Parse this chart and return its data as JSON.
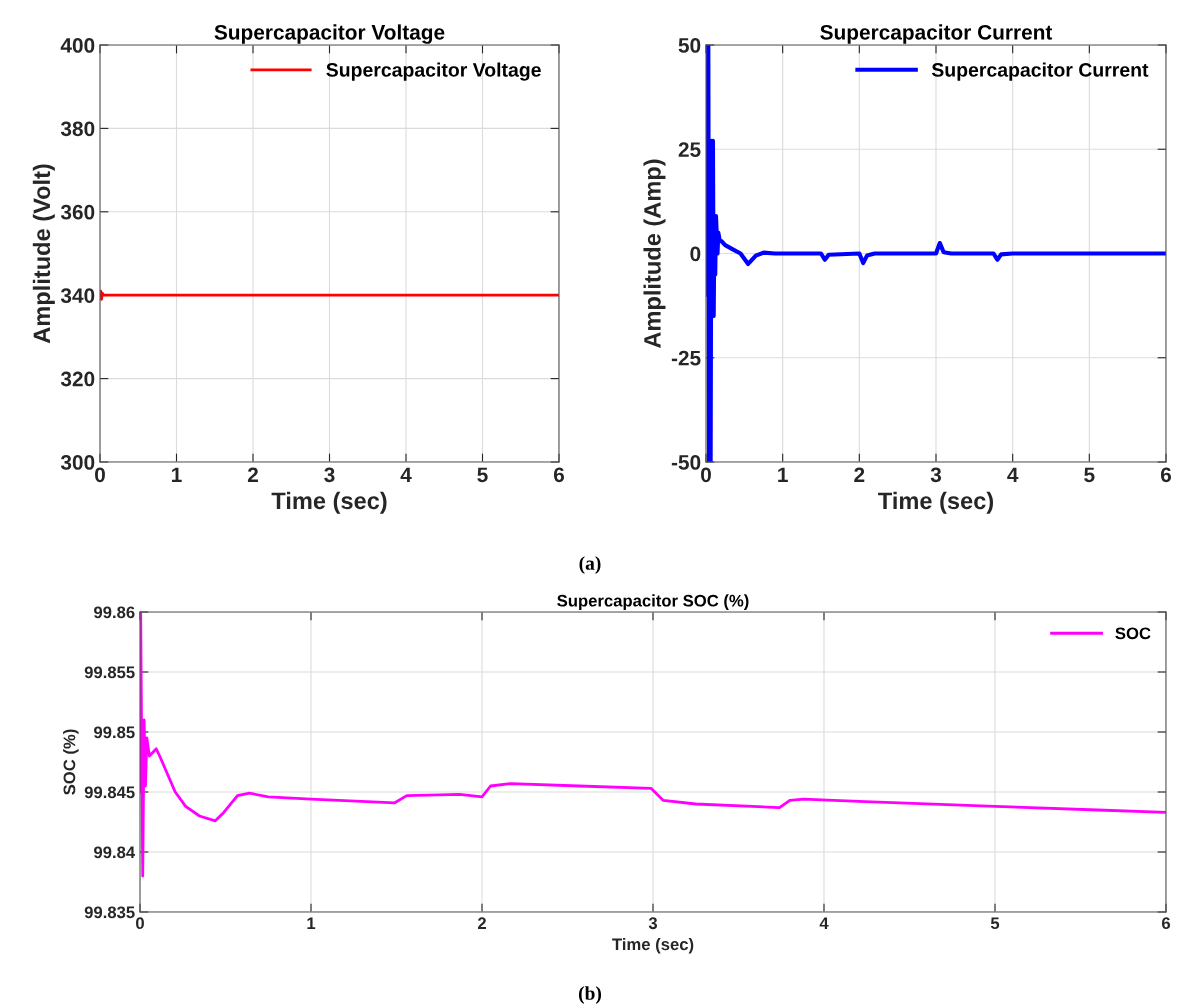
{
  "chart_data": [
    {
      "type": "line",
      "title": "Supercapacitor Voltage",
      "xlabel": "Time (sec)",
      "ylabel": "Amplitude (Volt)",
      "xlim": [
        0,
        6
      ],
      "xticks": [
        0,
        1,
        2,
        3,
        4,
        5,
        6
      ],
      "ylim": [
        300,
        400
      ],
      "yticks": [
        300,
        320,
        340,
        360,
        380,
        400
      ],
      "grid": true,
      "legend": "top right",
      "annotations": [
        "(a)"
      ],
      "series": [
        {
          "name": "Supercapacitor Voltage",
          "color": "#ff0000",
          "x": [
            0,
            0.01,
            0.02,
            0.03,
            0.05,
            1,
            2,
            3,
            4,
            5,
            6
          ],
          "values": [
            340,
            341,
            339,
            340.5,
            340,
            340,
            340,
            340,
            340,
            340,
            340
          ]
        }
      ]
    },
    {
      "type": "line",
      "title": "Supercapacitor Current",
      "xlabel": "Time (sec)",
      "ylabel": "Amplitude (Amp)",
      "xlim": [
        0,
        6
      ],
      "xticks": [
        0,
        1,
        2,
        3,
        4,
        5,
        6
      ],
      "ylim": [
        -50,
        50
      ],
      "yticks": [
        -50,
        -25,
        0,
        25,
        50
      ],
      "grid": true,
      "legend": "top right",
      "series": [
        {
          "name": "Supercapacitor Current",
          "color": "#0000ff",
          "x": [
            0,
            0.01,
            0.02,
            0.03,
            0.04,
            0.05,
            0.06,
            0.07,
            0.08,
            0.09,
            0.1,
            0.11,
            0.12,
            0.13,
            0.15,
            0.16,
            0.18,
            0.2,
            0.25,
            0.35,
            0.45,
            0.55,
            0.65,
            0.75,
            0.9,
            1.5,
            1.55,
            1.6,
            2.0,
            2.05,
            2.1,
            2.2,
            3.0,
            3.05,
            3.1,
            3.2,
            3.75,
            3.8,
            3.85,
            4,
            5,
            6
          ],
          "values": [
            0,
            50,
            -10,
            50,
            -50,
            27,
            -50,
            27,
            -15,
            27,
            -15,
            9,
            -5,
            9,
            0,
            5,
            3,
            3,
            2,
            1,
            0,
            -2.5,
            -0.5,
            0.2,
            0,
            0,
            -1.5,
            -0.3,
            0,
            -2.3,
            -0.5,
            0,
            0,
            2.5,
            0.3,
            0,
            0,
            -1.5,
            -0.2,
            0,
            0,
            0
          ]
        }
      ]
    },
    {
      "type": "line",
      "title": "Supercapacitor SOC (%)",
      "xlabel": "Time (sec)",
      "ylabel": "SOC (%)",
      "xlim": [
        0,
        6
      ],
      "xticks": [
        0,
        1,
        2,
        3,
        4,
        5,
        6
      ],
      "ylim": [
        99.835,
        99.86
      ],
      "yticks": [
        99.835,
        99.84,
        99.845,
        99.85,
        99.855,
        99.86
      ],
      "grid": true,
      "legend": "top right",
      "annotations": [
        "(b)"
      ],
      "series": [
        {
          "name": "SOC",
          "color": "#ff00ff",
          "x": [
            0,
            0.004,
            0.016,
            0.024,
            0.032,
            0.04,
            0.055,
            0.095,
            0.115,
            0.206,
            0.267,
            0.348,
            0.44,
            0.49,
            0.57,
            0.64,
            0.75,
            1.0,
            1.49,
            1.56,
            1.87,
            2.0,
            2.05,
            2.17,
            2.57,
            2.99,
            3.06,
            3.25,
            3.74,
            3.8,
            3.88,
            4.24,
            5.0,
            5.6,
            6.0
          ],
          "values": [
            99.845,
            99.86,
            99.838,
            99.851,
            99.8455,
            99.8495,
            99.848,
            99.8486,
            99.848,
            99.845,
            99.8438,
            99.843,
            99.8426,
            99.8433,
            99.8447,
            99.8449,
            99.8446,
            99.8444,
            99.8441,
            99.8447,
            99.8448,
            99.8446,
            99.8455,
            99.8457,
            99.8455,
            99.8453,
            99.8443,
            99.844,
            99.8437,
            99.8443,
            99.8444,
            99.8442,
            99.8438,
            99.8435,
            99.8433
          ]
        }
      ]
    }
  ]
}
